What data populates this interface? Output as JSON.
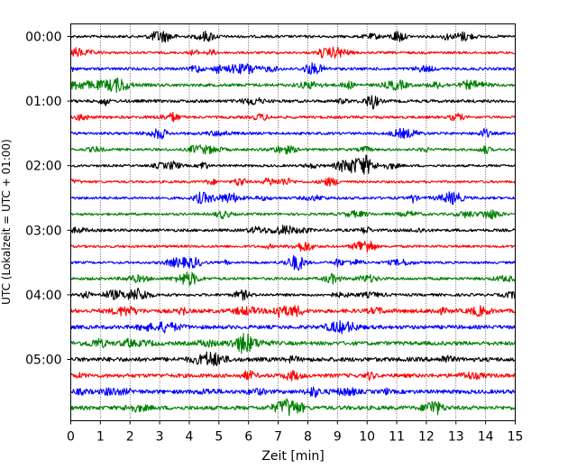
{
  "chart_data": {
    "type": "line",
    "title": "",
    "xlabel": "Zeit  [min]",
    "ylabel": "UTC (Lokalzeit = UTC + 01:00)",
    "xlim": [
      0,
      15
    ],
    "x_ticks": [
      0,
      1,
      2,
      3,
      4,
      5,
      6,
      7,
      8,
      9,
      10,
      11,
      12,
      13,
      14,
      15
    ],
    "x_tick_labels": [
      "0",
      "1",
      "2",
      "3",
      "4",
      "5",
      "6",
      "7",
      "8",
      "9",
      "10",
      "11",
      "12",
      "13",
      "14",
      "15"
    ],
    "y_tick_labels": [
      "00:00",
      "01:00",
      "02:00",
      "03:00",
      "04:00",
      "05:00"
    ],
    "y_tick_trace_index": [
      0,
      4,
      8,
      12,
      16,
      20
    ],
    "trace_count": 24,
    "trace_minutes": 15,
    "trace_colors": [
      "#000000",
      "#ff0000",
      "#0000ff",
      "#008000"
    ],
    "grid": "vertical-dotted",
    "legend": "none"
  }
}
